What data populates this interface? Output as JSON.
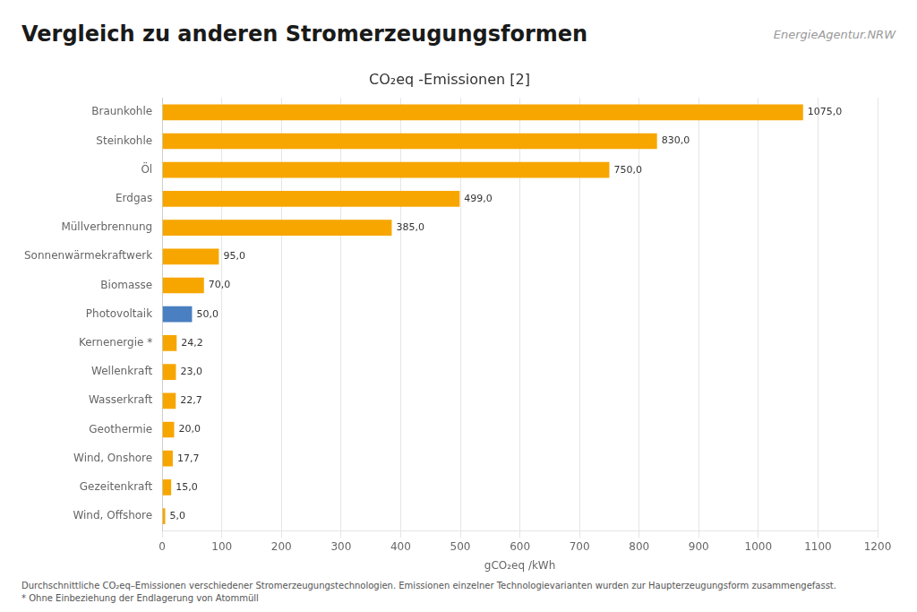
{
  "chart_data": {
    "type": "bar",
    "orientation": "horizontal",
    "title": "Vergleich zu anderen Stromerzeugungsformen",
    "subtitle": "CO₂eq -Emissionen [2]",
    "annotations": [
      "EnergieAgentur.NRW",
      "Durchschnittliche CO₂eq–Emissionen verschiedener Stromerzeugungstechnologien. Emissionen einzelner Technologievarianten wurden zur Haupterzeugungsform zusammengefasst.",
      "* Ohne Einbeziehung der Endlagerung von Atommüll"
    ],
    "categories": [
      "Braunkohle",
      "Steinkohle",
      "Öl",
      "Erdgas",
      "Müllverbrennung",
      "Sonnenwärmekraftwerk",
      "Biomasse",
      "Photovoltaik",
      "Kernenergie *",
      "Wellenkraft",
      "Wasserkraft",
      "Geothermie",
      "Wind, Onshore",
      "Gezeitenkraft",
      "Wind, Offshore"
    ],
    "values": [
      1075.0,
      830.0,
      750.0,
      499.0,
      385.0,
      95.0,
      70.0,
      50.0,
      24.2,
      23.0,
      22.7,
      20.0,
      17.7,
      15.0,
      5.0
    ],
    "value_labels": [
      "1075,0",
      "830,0",
      "750,0",
      "499,0",
      "385,0",
      "95,0",
      "70,0",
      "50,0",
      "24,2",
      "23,0",
      "22,7",
      "20,0",
      "17,7",
      "15,0",
      "5,0"
    ],
    "data_labels": true,
    "colors": [
      "#F7A600",
      "#F7A600",
      "#F7A600",
      "#F7A600",
      "#F7A600",
      "#F7A600",
      "#F7A600",
      "#4A7FC1",
      "#F7A600",
      "#F7A600",
      "#F7A600",
      "#F7A600",
      "#F7A600",
      "#F7A600",
      "#F7A600"
    ],
    "xlabel": "gCO₂eq /kWh",
    "xlim": [
      0,
      1200
    ],
    "xticks": [
      0,
      100,
      200,
      300,
      400,
      500,
      600,
      700,
      800,
      900,
      1000,
      1100,
      1200
    ],
    "grid": true
  }
}
